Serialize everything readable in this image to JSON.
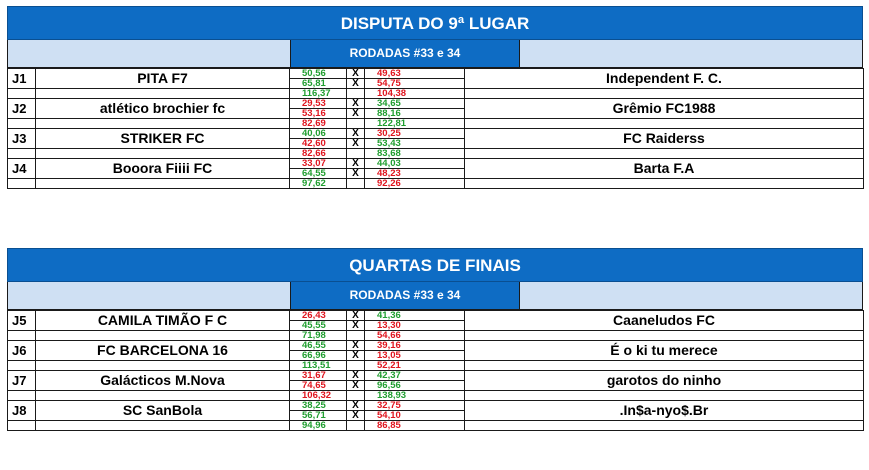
{
  "sections": [
    {
      "title": "DISPUTA DO 9ª LUGAR",
      "subtitle": "RODADAS #33 e 34",
      "matches": [
        {
          "code": "J1",
          "home": "PITA F7",
          "away": "Independent F. C.",
          "rows": [
            {
              "h": "50,56",
              "hc": "green",
              "a": "49,63",
              "ac": "red"
            },
            {
              "h": "65,81",
              "hc": "green",
              "a": "54,75",
              "ac": "red"
            }
          ],
          "total_h": "116,37",
          "total_hc": "green",
          "total_a": "104,38",
          "total_ac": "red"
        },
        {
          "code": "J2",
          "home": "atlético brochier fc",
          "away": "Grêmio FC1988",
          "rows": [
            {
              "h": "29,53",
              "hc": "red",
              "a": "34,65",
              "ac": "green"
            },
            {
              "h": "53,16",
              "hc": "red",
              "a": "88,16",
              "ac": "green"
            }
          ],
          "total_h": "82,69",
          "total_hc": "red",
          "total_a": "122,81",
          "total_ac": "green"
        },
        {
          "code": "J3",
          "home": "STRIKER FC",
          "away": "FC Raiderss",
          "rows": [
            {
              "h": "40,06",
              "hc": "green",
              "a": "30,25",
              "ac": "red"
            },
            {
              "h": "42,60",
              "hc": "red",
              "a": "53,43",
              "ac": "green"
            }
          ],
          "total_h": "82,66",
          "total_hc": "red",
          "total_a": "83,68",
          "total_ac": "green"
        },
        {
          "code": "J4",
          "home": "Booora Fiiii FC",
          "away": "Barta F.A",
          "rows": [
            {
              "h": "33,07",
              "hc": "red",
              "a": "44,03",
              "ac": "green"
            },
            {
              "h": "64,55",
              "hc": "green",
              "a": "48,23",
              "ac": "red"
            }
          ],
          "total_h": "97,62",
          "total_hc": "green",
          "total_a": "92,26",
          "total_ac": "red"
        }
      ]
    },
    {
      "title": "QUARTAS DE FINAIS",
      "subtitle": "RODADAS #33 e 34",
      "matches": [
        {
          "code": "J5",
          "home": "CAMILA TIMÃO F C",
          "away": "Caaneludos FC",
          "rows": [
            {
              "h": "26,43",
              "hc": "red",
              "a": "41,36",
              "ac": "green"
            },
            {
              "h": "45,55",
              "hc": "green",
              "a": "13,30",
              "ac": "red"
            }
          ],
          "total_h": "71,98",
          "total_hc": "green",
          "total_a": "54,66",
          "total_ac": "red"
        },
        {
          "code": "J6",
          "home": "FC BARCELONA 16",
          "away": "É o ki tu merece",
          "rows": [
            {
              "h": "46,55",
              "hc": "green",
              "a": "39,16",
              "ac": "red"
            },
            {
              "h": "66,96",
              "hc": "green",
              "a": "13,05",
              "ac": "red"
            }
          ],
          "total_h": "113,51",
          "total_hc": "green",
          "total_a": "52,21",
          "total_ac": "red"
        },
        {
          "code": "J7",
          "home": "Galácticos M.Nova",
          "away": "garotos do ninho",
          "rows": [
            {
              "h": "31,67",
              "hc": "red",
              "a": "42,37",
              "ac": "green"
            },
            {
              "h": "74,65",
              "hc": "red",
              "a": "96,56",
              "ac": "green"
            }
          ],
          "total_h": "106,32",
          "total_hc": "red",
          "total_a": "138,93",
          "total_ac": "green"
        },
        {
          "code": "J8",
          "home": "SC SanBola",
          "away": ".In$a-nyo$.Br",
          "rows": [
            {
              "h": "38,25",
              "hc": "green",
              "a": "32,75",
              "ac": "red"
            },
            {
              "h": "56,71",
              "hc": "green",
              "a": "54,10",
              "ac": "red"
            }
          ],
          "total_h": "94,96",
          "total_hc": "green",
          "total_a": "86,85",
          "total_ac": "red"
        }
      ]
    }
  ],
  "vs_symbol": "X",
  "colors": {
    "header_blue": "#0e6cc4",
    "light_blue": "#cfe0f3",
    "win": "#1f9e2f",
    "loss": "#e0141e"
  }
}
